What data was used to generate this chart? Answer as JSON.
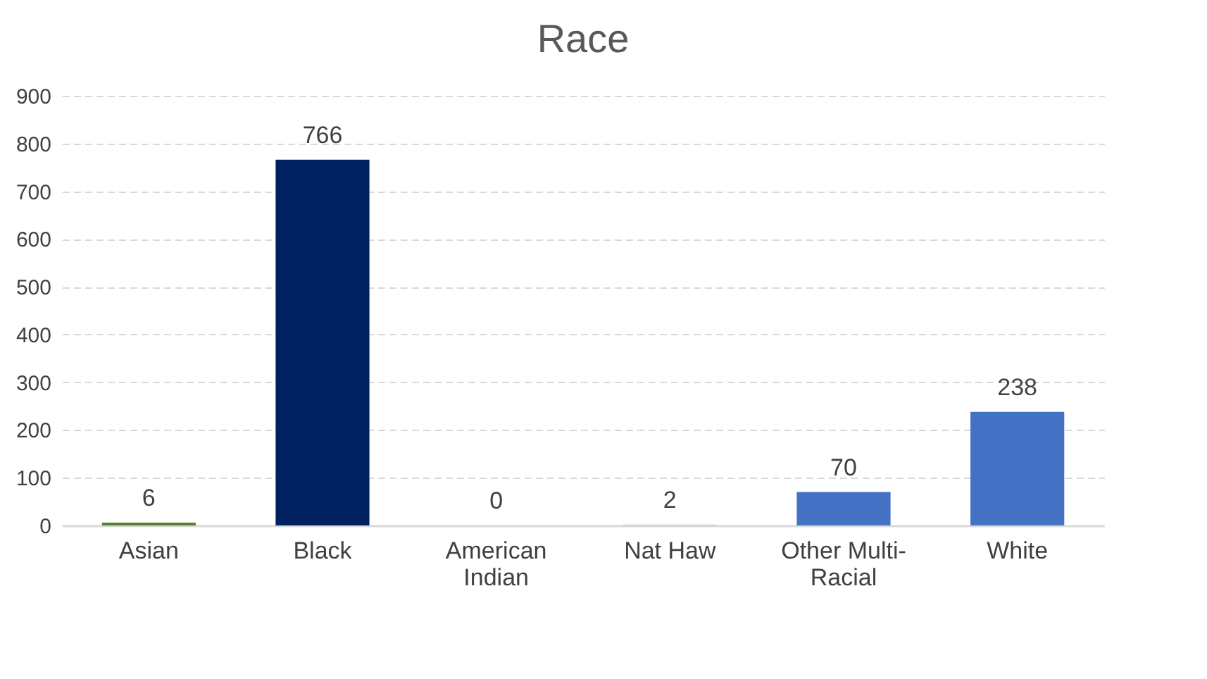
{
  "chart_data": {
    "type": "bar",
    "title": "Race",
    "categories": [
      "Asian",
      "Black",
      "American Indian",
      "Nat Haw",
      "Other Multi-Racial",
      "White"
    ],
    "values": [
      6,
      766,
      0,
      2,
      70,
      238
    ],
    "colors": [
      "#548235",
      "#002060",
      "#a5a5a5",
      "#d9cbbd",
      "#4472c4",
      "#4472c4"
    ],
    "ylim": [
      0,
      900
    ],
    "yticks": [
      0,
      100,
      200,
      300,
      400,
      500,
      600,
      700,
      800,
      900
    ],
    "grid": "y",
    "data_labels": true
  }
}
